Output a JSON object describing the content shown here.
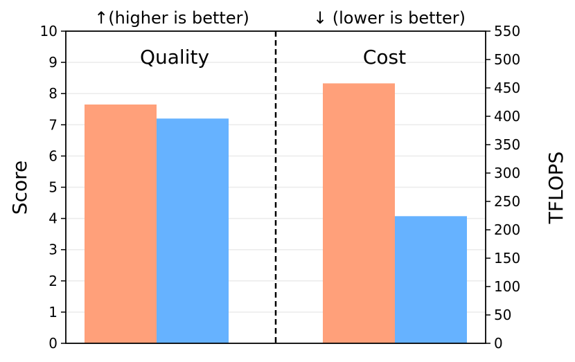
{
  "chart_data": {
    "type": "bar",
    "headers": {
      "left": "↑(higher is better)",
      "right": "↓ (lower is better)"
    },
    "panels": [
      {
        "title": "Quality",
        "axis": "left",
        "values": [
          7.65,
          7.2
        ],
        "colors": [
          "#ffa07a",
          "#66b2ff"
        ]
      },
      {
        "title": "Cost",
        "axis": "right",
        "values": [
          458,
          224
        ],
        "colors": [
          "#ffa07a",
          "#66b2ff"
        ]
      }
    ],
    "left_axis": {
      "label": "Score",
      "ylim": [
        0,
        10
      ],
      "ticks": [
        "0",
        "1",
        "2",
        "3",
        "4",
        "5",
        "6",
        "7",
        "8",
        "9",
        "10"
      ]
    },
    "right_axis": {
      "label": "TFLOPS",
      "ylim": [
        0,
        550
      ],
      "ticks": [
        "0",
        "50",
        "100",
        "150",
        "200",
        "250",
        "300",
        "350",
        "400",
        "450",
        "500",
        "550"
      ]
    },
    "grid": true,
    "divider": "dashed"
  }
}
